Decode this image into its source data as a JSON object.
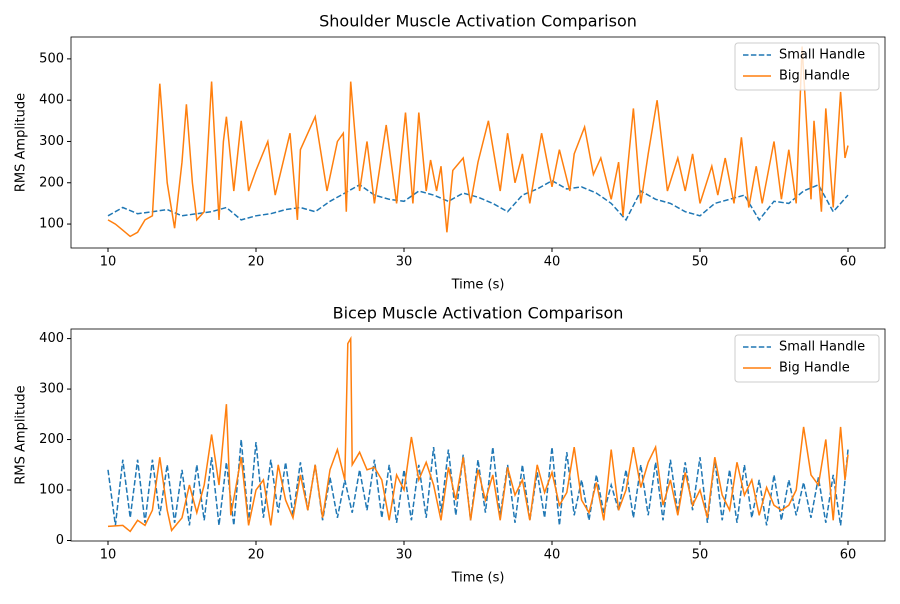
{
  "chart_data": [
    {
      "type": "line",
      "title": "Shoulder Muscle Activation Comparison",
      "x_label": "Time (s)",
      "y_label": "RMS Amplitude",
      "xlim": [
        7.5,
        62.5
      ],
      "xticks": [
        10,
        20,
        30,
        40,
        50,
        60
      ],
      "ylim": [
        42,
        553
      ],
      "yticks": [
        100,
        200,
        300,
        400,
        500
      ],
      "legend": "upper right",
      "series": [
        {
          "name": "Small Handle",
          "color": "#1f77b4",
          "linestyle": "dashed",
          "x": [
            10,
            11,
            12,
            13,
            14,
            15,
            16,
            17,
            18,
            19,
            20,
            21,
            22,
            23,
            24,
            25,
            26,
            27,
            28,
            29,
            30,
            31,
            32,
            33,
            34,
            35,
            36,
            37,
            38,
            39,
            40,
            41,
            42,
            43,
            44,
            45,
            46,
            47,
            48,
            49,
            50,
            51,
            52,
            53,
            54,
            55,
            56,
            57,
            58,
            59,
            60
          ],
          "values": [
            120,
            140,
            125,
            130,
            135,
            120,
            125,
            130,
            140,
            110,
            120,
            125,
            135,
            140,
            130,
            155,
            175,
            195,
            170,
            160,
            155,
            180,
            170,
            155,
            175,
            165,
            150,
            130,
            170,
            185,
            205,
            185,
            190,
            175,
            150,
            110,
            180,
            160,
            150,
            130,
            120,
            150,
            160,
            170,
            110,
            155,
            150,
            180,
            195,
            130,
            170
          ]
        },
        {
          "name": "Big Handle",
          "color": "#ff7f0e",
          "linestyle": "solid",
          "x": [
            10,
            10.5,
            11,
            11.5,
            12,
            12.5,
            13,
            13.5,
            14,
            14.5,
            15,
            15.3,
            15.7,
            16,
            16.5,
            17,
            17.5,
            17.8,
            18,
            18.5,
            19,
            19.5,
            20,
            20.8,
            21.3,
            22.3,
            22.8,
            23,
            24,
            24.8,
            25.5,
            25.9,
            26.1,
            26.4,
            27,
            27.5,
            28,
            28.8,
            29.5,
            30.1,
            30.6,
            31,
            31.5,
            31.8,
            32.2,
            32.5,
            32.9,
            33.3,
            34,
            34.5,
            35,
            35.7,
            36.5,
            37,
            37.5,
            38,
            38.5,
            39.3,
            40,
            40.5,
            41.2,
            41.5,
            42.2,
            42.8,
            43.3,
            44,
            44.5,
            44.8,
            45.5,
            46,
            46.5,
            47.1,
            47.8,
            48.5,
            49,
            49.5,
            50,
            50.8,
            51.2,
            51.7,
            52.3,
            52.8,
            53.3,
            53.8,
            54.2,
            55,
            55.5,
            56,
            56.5,
            56.9,
            57.5,
            57.7,
            58.2,
            58.5,
            59,
            59.5,
            59.8,
            60
          ],
          "values": [
            110,
            100,
            85,
            70,
            80,
            110,
            120,
            440,
            200,
            90,
            250,
            390,
            200,
            110,
            130,
            445,
            110,
            300,
            360,
            180,
            350,
            180,
            230,
            300,
            170,
            320,
            110,
            280,
            360,
            180,
            300,
            320,
            130,
            445,
            180,
            300,
            150,
            340,
            150,
            370,
            150,
            370,
            180,
            255,
            180,
            240,
            80,
            230,
            260,
            150,
            250,
            350,
            180,
            320,
            200,
            270,
            150,
            320,
            190,
            280,
            180,
            270,
            335,
            220,
            260,
            160,
            250,
            120,
            380,
            150,
            270,
            400,
            180,
            260,
            180,
            270,
            150,
            240,
            170,
            260,
            150,
            310,
            140,
            240,
            150,
            300,
            160,
            280,
            150,
            530,
            160,
            350,
            130,
            380,
            140,
            420,
            260,
            290
          ]
        }
      ]
    },
    {
      "type": "line",
      "title": "Bicep Muscle Activation Comparison",
      "x_label": "Time (s)",
      "y_label": "RMS Amplitude",
      "xlim": [
        7.5,
        62.5
      ],
      "xticks": [
        10,
        20,
        30,
        40,
        50,
        60
      ],
      "ylim": [
        -1,
        419
      ],
      "yticks": [
        0,
        100,
        200,
        300,
        400
      ],
      "legend": "upper right",
      "series": [
        {
          "name": "Small Handle",
          "color": "#1f77b4",
          "linestyle": "dashed",
          "x": [
            10,
            10.5,
            11,
            11.5,
            12,
            12.5,
            13,
            13.5,
            14,
            14.5,
            15,
            15.5,
            16,
            16.5,
            17,
            17.5,
            18,
            18.5,
            19,
            19.5,
            20,
            20.5,
            21,
            21.5,
            22,
            22.5,
            23,
            23.5,
            24,
            24.5,
            25,
            25.5,
            26,
            26.5,
            27,
            27.5,
            28,
            28.5,
            29,
            29.5,
            30,
            30.5,
            31,
            31.5,
            32,
            32.5,
            33,
            33.5,
            34,
            34.5,
            35,
            35.5,
            36,
            36.5,
            37,
            37.5,
            38,
            38.5,
            39,
            39.5,
            40,
            40.5,
            41,
            41.5,
            42,
            42.5,
            43,
            43.5,
            44,
            44.5,
            45,
            45.5,
            46,
            46.5,
            47,
            47.5,
            48,
            48.5,
            49,
            49.5,
            50,
            50.5,
            51,
            51.5,
            52,
            52.5,
            53,
            53.5,
            54,
            54.5,
            55,
            55.5,
            56,
            56.5,
            57,
            57.5,
            58,
            58.5,
            59,
            59.5,
            60
          ],
          "values": [
            140,
            30,
            160,
            45,
            160,
            35,
            160,
            50,
            150,
            35,
            140,
            30,
            150,
            40,
            165,
            30,
            155,
            30,
            200,
            35,
            195,
            45,
            160,
            55,
            155,
            50,
            155,
            60,
            150,
            40,
            125,
            45,
            120,
            55,
            140,
            60,
            160,
            45,
            150,
            35,
            140,
            40,
            150,
            45,
            185,
            55,
            180,
            50,
            170,
            40,
            160,
            55,
            185,
            50,
            150,
            35,
            150,
            40,
            135,
            45,
            185,
            30,
            175,
            50,
            120,
            40,
            130,
            55,
            110,
            60,
            140,
            45,
            150,
            50,
            155,
            40,
            160,
            55,
            155,
            60,
            165,
            35,
            160,
            40,
            140,
            35,
            150,
            45,
            120,
            30,
            130,
            40,
            120,
            50,
            115,
            45,
            125,
            35,
            130,
            30,
            180
          ]
        },
        {
          "name": "Big Handle",
          "color": "#ff7f0e",
          "linestyle": "solid",
          "x": [
            10,
            11,
            11.5,
            12,
            12.5,
            13,
            13.5,
            14,
            14.3,
            15,
            15.5,
            16,
            16.5,
            17,
            17.5,
            18,
            18.3,
            19,
            19.5,
            20,
            20.5,
            21,
            21.5,
            22,
            22.5,
            23,
            23.5,
            24,
            24.5,
            25,
            25.5,
            26,
            26.2,
            26.4,
            26.5,
            27,
            27.5,
            28,
            28.5,
            29,
            29.5,
            30,
            30.5,
            31,
            31.5,
            32,
            32.5,
            33,
            33.5,
            34,
            34.5,
            35,
            35.5,
            36,
            36.5,
            37,
            37.5,
            38,
            38.5,
            39,
            39.5,
            40,
            40.5,
            41,
            41.5,
            42,
            42.5,
            43,
            43.5,
            44,
            44.5,
            45,
            45.5,
            46,
            46.5,
            47,
            47.5,
            48,
            48.5,
            49,
            49.5,
            50,
            50.5,
            51,
            51.5,
            52,
            52.5,
            53,
            53.5,
            54,
            54.5,
            55,
            55.5,
            56,
            56.5,
            57,
            57.5,
            58,
            58.5,
            59,
            59.5,
            59.8,
            60
          ],
          "values": [
            28,
            30,
            18,
            40,
            30,
            60,
            165,
            60,
            20,
            45,
            110,
            55,
            110,
            210,
            110,
            270,
            50,
            165,
            30,
            100,
            120,
            30,
            150,
            80,
            45,
            130,
            60,
            150,
            45,
            140,
            180,
            120,
            390,
            400,
            150,
            175,
            140,
            145,
            120,
            40,
            130,
            100,
            205,
            120,
            155,
            110,
            40,
            145,
            80,
            165,
            40,
            140,
            80,
            130,
            40,
            145,
            90,
            120,
            40,
            150,
            95,
            135,
            70,
            95,
            185,
            80,
            55,
            115,
            40,
            180,
            60,
            100,
            185,
            105,
            155,
            185,
            70,
            120,
            50,
            135,
            70,
            100,
            45,
            165,
            90,
            60,
            155,
            90,
            120,
            50,
            105,
            70,
            60,
            70,
            100,
            225,
            130,
            110,
            200,
            40,
            225,
            120,
            170
          ]
        }
      ]
    }
  ]
}
